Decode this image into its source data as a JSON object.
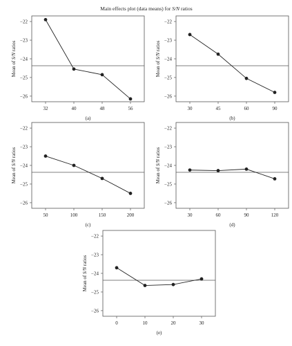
{
  "figure": {
    "title": "Main effects plot (data means) for S/N ratios"
  },
  "colors": {
    "ink": "#222222",
    "frame": "#555555",
    "background": "#ffffff"
  },
  "chart_data": [
    {
      "type": "line",
      "panel_label": "(a)",
      "ylabel": "Mean of S/N ratios",
      "ylim": [
        -26.3,
        -21.7
      ],
      "yticks": [
        -22,
        -23,
        -24,
        -25,
        -26
      ],
      "categories": [
        "32",
        "40",
        "48",
        "56"
      ],
      "values": [
        -21.9,
        -24.55,
        -24.85,
        -26.15
      ],
      "reference_line": -24.37,
      "grid": false
    },
    {
      "type": "line",
      "panel_label": "(b)",
      "ylabel": "Mean of S/N ratios",
      "ylim": [
        -26.3,
        -21.7
      ],
      "yticks": [
        -22,
        -23,
        -24,
        -25,
        -26
      ],
      "categories": [
        "30",
        "45",
        "60",
        "90"
      ],
      "values": [
        -22.7,
        -23.75,
        -25.05,
        -25.8
      ],
      "reference_line": -24.37,
      "grid": false
    },
    {
      "type": "line",
      "panel_label": "(c)",
      "ylabel": "Mean of S/N ratios",
      "ylim": [
        -26.3,
        -21.7
      ],
      "yticks": [
        -22,
        -23,
        -24,
        -25,
        -26
      ],
      "categories": [
        "50",
        "100",
        "150",
        "200"
      ],
      "values": [
        -23.5,
        -24.0,
        -24.7,
        -25.5
      ],
      "reference_line": -24.37,
      "grid": false
    },
    {
      "type": "line",
      "panel_label": "(d)",
      "ylabel": "Mean of S/N ratios",
      "ylim": [
        -26.3,
        -21.7
      ],
      "yticks": [
        -22,
        -23,
        -24,
        -25,
        -26
      ],
      "categories": [
        "30",
        "60",
        "90",
        "120"
      ],
      "values": [
        -24.25,
        -24.28,
        -24.2,
        -24.72
      ],
      "reference_line": -24.37,
      "grid": false
    },
    {
      "type": "line",
      "panel_label": "(e)",
      "ylabel": "Mean of S/N ratios",
      "ylim": [
        -26.3,
        -21.7
      ],
      "yticks": [
        -22,
        -23,
        -24,
        -25,
        -26
      ],
      "categories": [
        "0",
        "10",
        "20",
        "30"
      ],
      "values": [
        -23.7,
        -24.65,
        -24.6,
        -24.3
      ],
      "reference_line": -24.37,
      "grid": false
    }
  ]
}
